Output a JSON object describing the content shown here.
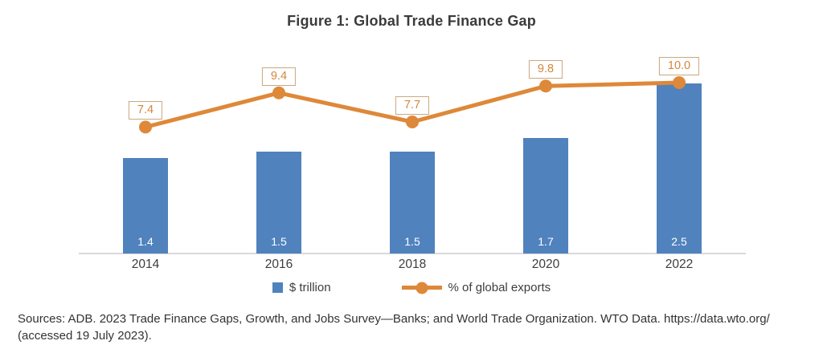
{
  "figure": {
    "title": "Figure 1: Global Trade Finance Gap"
  },
  "chart_data": {
    "type": "bar+line",
    "categories": [
      "2014",
      "2016",
      "2018",
      "2020",
      "2022"
    ],
    "series": [
      {
        "name": "$ trillion",
        "type": "bar",
        "values": [
          1.4,
          1.5,
          1.5,
          1.7,
          2.5
        ],
        "color": "#5082BE",
        "data_labels": "inside-bottom, white, one decimal"
      },
      {
        "name": "% of global exports",
        "type": "line",
        "values": [
          7.4,
          9.4,
          7.7,
          9.8,
          10.0
        ],
        "color": "#DE8839",
        "data_labels": "boxed above markers, one decimal"
      }
    ],
    "title": "Figure 1: Global Trade Finance Gap",
    "xlabel": "",
    "ylabel": "",
    "bar_axis_range": [
      0,
      2.55
    ],
    "line_axis_range": [
      0,
      10.3
    ],
    "grid": false,
    "y_axis_visible": false,
    "legend_position": "bottom"
  },
  "legend": {
    "items": [
      {
        "label": "$ trillion",
        "swatch": "square",
        "color": "#5082BE"
      },
      {
        "label": "% of global exports",
        "swatch": "line-dot",
        "color": "#DE8839"
      }
    ]
  },
  "source": {
    "line1": "Sources: ADB. 2023 Trade Finance Gaps, Growth, and Jobs Survey—Banks; and World Trade Organization. WTO Data. https://data.wto.org/",
    "line2": "(accessed 19 July 2023)."
  },
  "colors": {
    "bar": "#5082BE",
    "line": "#DE8839",
    "label_box_border": "#C9A87E",
    "label_box_text": "#D2873D",
    "axis_line": "#D9D9D9",
    "text": "#3D3D3D",
    "bar_label_text": "#FFFFFF",
    "background": "#FFFFFF"
  }
}
